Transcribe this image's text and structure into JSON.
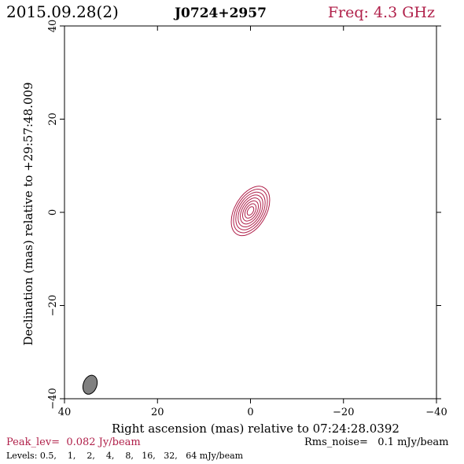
{
  "header": {
    "date": "2015.09.28(2)",
    "source": "J0724+2957",
    "frequency": "Freq: 4.3 GHz"
  },
  "footer": {
    "peak": "Peak_lev=  0.082 Jy/beam",
    "rms": "Rms_noise=   0.1 mJy/beam",
    "levels": "Levels: 0.5,    1,    2,    4,    8,   16,   32,   64 mJy/beam"
  },
  "colors": {
    "contour": "#b0204a",
    "beam_fill": "#808080",
    "axis": "#000000"
  },
  "chart_data": {
    "type": "contour",
    "xlabel": "Right ascension (mas) relative to 07:24:28.0392",
    "ylabel": "Declination (mas) relative to +29:57:48.009",
    "xlim": [
      40,
      -40
    ],
    "ylim": [
      -40,
      40
    ],
    "x_ticks": [
      40,
      20,
      0,
      -20,
      -40
    ],
    "x_tick_labels": [
      "40",
      "20",
      "0",
      "−20",
      "−40"
    ],
    "y_ticks": [
      -40,
      -20,
      0,
      20,
      40
    ],
    "y_tick_labels": [
      "−40",
      "−20",
      "0",
      "20",
      "40"
    ],
    "contour_levels_mJy": [
      0.5,
      1,
      2,
      4,
      8,
      16,
      32,
      64
    ],
    "peak_Jy_per_beam": 0.082,
    "rms_mJy_per_beam": 0.1,
    "source_component": {
      "x_mas": 0.0,
      "y_mas": 0.3,
      "outer_semi_major_mas": 5.8,
      "outer_semi_minor_mas": 3.4,
      "position_angle_deg": 30
    },
    "beam": {
      "x_mas": 34.5,
      "y_mas": -37.0,
      "semi_major_mas": 2.1,
      "semi_minor_mas": 1.45,
      "position_angle_deg": 20
    }
  }
}
